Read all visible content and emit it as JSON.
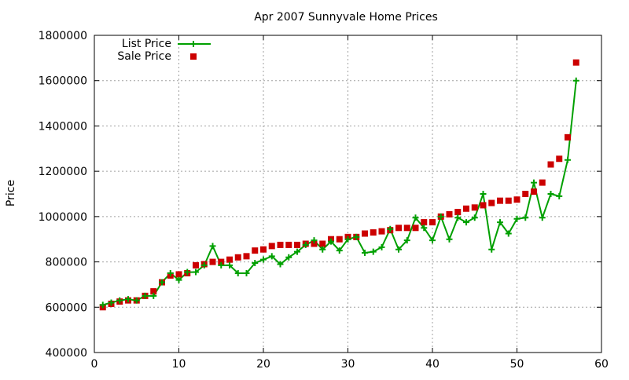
{
  "chart_data": {
    "type": "line",
    "title": "Apr 2007 Sunnyvale Home Prices",
    "xlabel": "",
    "ylabel": "Price",
    "xlim": [
      0,
      60
    ],
    "ylim": [
      400000,
      1800000
    ],
    "x_ticks": [
      "0",
      "10",
      "20",
      "30",
      "40",
      "50",
      "60"
    ],
    "y_ticks": [
      "400000",
      "600000",
      "800000",
      "1000000",
      "1200000",
      "1400000",
      "1600000",
      "1800000"
    ],
    "grid": true,
    "legend_position": "top-left",
    "series": [
      {
        "name": "List Price",
        "style": "line-with-plus-markers",
        "color": "#00a000",
        "x": [
          1,
          2,
          3,
          4,
          5,
          6,
          7,
          8,
          9,
          10,
          11,
          12,
          13,
          14,
          15,
          16,
          17,
          18,
          19,
          20,
          21,
          22,
          23,
          24,
          25,
          26,
          27,
          28,
          29,
          30,
          31,
          32,
          33,
          34,
          35,
          36,
          37,
          38,
          39,
          40,
          41,
          42,
          43,
          44,
          45,
          46,
          47,
          48,
          49,
          50,
          51,
          52,
          53,
          54,
          55,
          56,
          57
        ],
        "y": [
          610000,
          620000,
          630000,
          635000,
          630000,
          650000,
          650000,
          710000,
          750000,
          720000,
          755000,
          755000,
          785000,
          870000,
          785000,
          785000,
          750000,
          750000,
          795000,
          810000,
          825000,
          790000,
          820000,
          845000,
          875000,
          895000,
          855000,
          890000,
          850000,
          900000,
          910000,
          840000,
          845000,
          865000,
          945000,
          855000,
          895000,
          995000,
          950000,
          895000,
          1000000,
          900000,
          995000,
          975000,
          995000,
          1100000,
          855000,
          975000,
          925000,
          990000,
          995000,
          1150000,
          995000,
          1100000,
          1090000,
          1250000,
          1600000
        ]
      },
      {
        "name": "Sale Price",
        "style": "square-markers",
        "color": "#cc0000",
        "x": [
          1,
          2,
          3,
          4,
          5,
          6,
          7,
          8,
          9,
          10,
          11,
          12,
          13,
          14,
          15,
          16,
          17,
          18,
          19,
          20,
          21,
          22,
          23,
          24,
          25,
          26,
          27,
          28,
          29,
          30,
          31,
          32,
          33,
          34,
          35,
          36,
          37,
          38,
          39,
          40,
          41,
          42,
          43,
          44,
          45,
          46,
          47,
          48,
          49,
          50,
          51,
          52,
          53,
          54,
          55,
          56,
          57
        ],
        "y": [
          600000,
          615000,
          625000,
          630000,
          630000,
          650000,
          670000,
          710000,
          740000,
          745000,
          750000,
          785000,
          790000,
          800000,
          800000,
          810000,
          820000,
          825000,
          850000,
          855000,
          870000,
          875000,
          875000,
          875000,
          880000,
          880000,
          880000,
          900000,
          900000,
          910000,
          910000,
          925000,
          930000,
          935000,
          940000,
          950000,
          950000,
          950000,
          975000,
          975000,
          1000000,
          1010000,
          1020000,
          1035000,
          1040000,
          1050000,
          1060000,
          1070000,
          1070000,
          1075000,
          1100000,
          1110000,
          1150000,
          1230000,
          1255000,
          1350000,
          1680000
        ]
      }
    ]
  }
}
